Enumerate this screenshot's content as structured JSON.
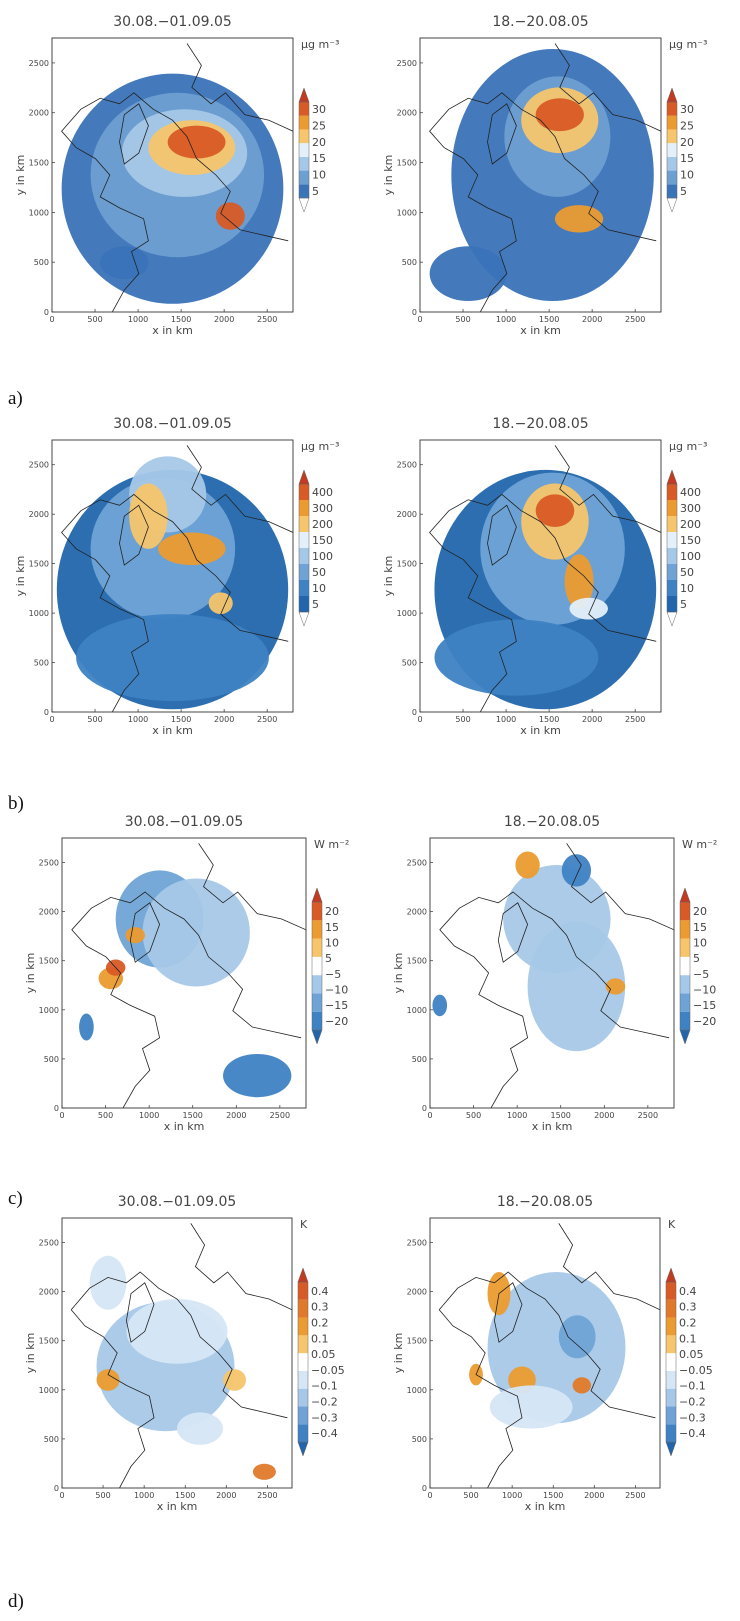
{
  "figure": {
    "rows": [
      {
        "label": "a)",
        "unit": "µg  m⁻³",
        "colorbar": {
          "ticks": [
            "5",
            "10",
            "15",
            "20",
            "25",
            "30"
          ],
          "colors": [
            "#ffffff",
            "#3a73b8",
            "#6e9fd2",
            "#a6c8e8",
            "#e3eff9",
            "#f6c56c",
            "#eb9b2f",
            "#d85a25",
            "#c23a22"
          ]
        },
        "panels": [
          {
            "title": "30.08.−01.09.05"
          },
          {
            "title": "18.−20.08.05"
          }
        ]
      },
      {
        "label": "b)",
        "unit": "µg  m⁻³",
        "colorbar": {
          "ticks": [
            "5",
            "10",
            "50",
            "100",
            "150",
            "200",
            "300",
            "400"
          ],
          "colors": [
            "#ffffff",
            "#2166ac",
            "#3e82c4",
            "#6fa3d6",
            "#a6c8e8",
            "#e3eff9",
            "#f6c56c",
            "#eb9b2f",
            "#d85a25",
            "#c23a22"
          ]
        },
        "panels": [
          {
            "title": "30.08.−01.09.05"
          },
          {
            "title": "18.−20.08.05"
          }
        ]
      },
      {
        "label": "c)",
        "unit": "W  m⁻²",
        "colorbar": {
          "ticks": [
            "−20",
            "−15",
            "−10",
            "−5",
            "5",
            "10",
            "15",
            "20"
          ],
          "colors": [
            "#2166ac",
            "#3e82c4",
            "#6fa3d6",
            "#a6c8e8",
            "#ffffff",
            "#f6c56c",
            "#eb9b2f",
            "#d85a25",
            "#c23a22"
          ]
        },
        "panels": [
          {
            "title": "30.08.−01.09.05"
          },
          {
            "title": "18.−20.08.05"
          }
        ]
      },
      {
        "label": "d)",
        "unit": "K",
        "colorbar": {
          "ticks": [
            "−0.4",
            "−0.3",
            "−0.2",
            "−0.1",
            "−0.05",
            "0.05",
            "0.1",
            "0.2",
            "0.3",
            "0.4"
          ],
          "colors": [
            "#2166ac",
            "#3e82c4",
            "#6fa3d6",
            "#a6c8e8",
            "#d6e6f5",
            "#ffffff",
            "#f6c56c",
            "#eb9b2f",
            "#e07a2a",
            "#d85a25",
            "#c23a22"
          ]
        },
        "panels": [
          {
            "title": "30.08.−01.09.05"
          },
          {
            "title": "18.−20.08.05"
          }
        ]
      }
    ],
    "axes": {
      "xlabel": "x  in  km",
      "ylabel": "y  in  km",
      "xticks": [
        "0",
        "500",
        "1000",
        "1500",
        "2000",
        "2500"
      ],
      "yticks": [
        "0",
        "500",
        "1000",
        "1500",
        "2000",
        "2500"
      ]
    }
  }
}
